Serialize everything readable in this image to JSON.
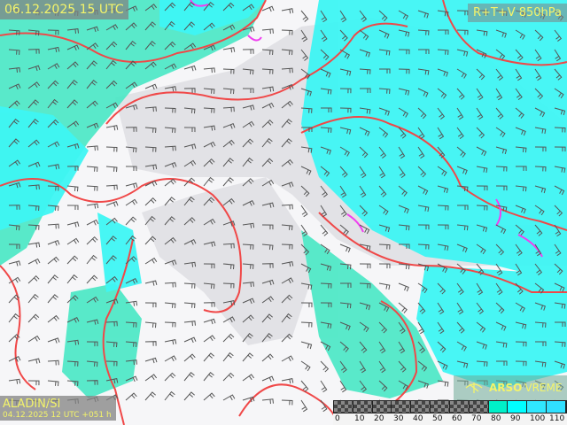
{
  "header": {
    "valid_time": "06.12.2025 15 UTC",
    "product": "R+T+V 850hPa"
  },
  "model": {
    "name": "ALADIN/SI",
    "run": "04.12.2025 12 UTC +051 h"
  },
  "brand": {
    "logo_icon": "bird-logo-icon",
    "name_bold": "ARSO",
    "name_regular": "VREME"
  },
  "legend": {
    "unit_ticks": [
      "0",
      "10",
      "20",
      "30",
      "40",
      "50",
      "60",
      "70",
      "80",
      "90",
      "100",
      "110"
    ],
    "colors": [
      "checker",
      "checker",
      "checker",
      "checker",
      "checker",
      "checker",
      "checker",
      "checker",
      "#00f0c8",
      "#00ffff",
      "#30e8ff",
      "#30e0ff"
    ]
  },
  "colors": {
    "humid_high": "#40f4f0",
    "humid_mid": "#48e8c0",
    "contour": "#f04848",
    "isotherm_special": "#f040f0",
    "land": "#e6e6ea",
    "sea": "#f8f8f8",
    "text": "#f4f46a"
  }
}
